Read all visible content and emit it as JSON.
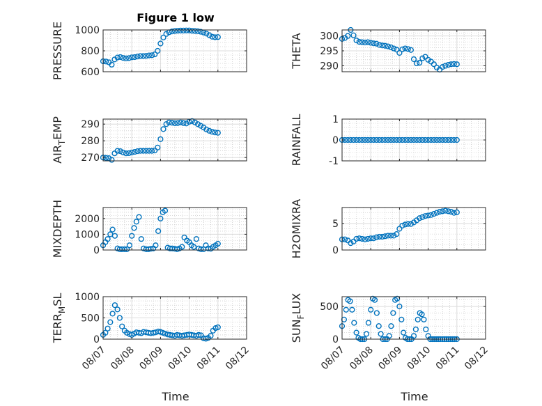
{
  "figure": {
    "title": "Figure 1 low",
    "xlabel": "Time"
  },
  "colors": {
    "marker": "#0072bd",
    "axis": "#262626",
    "grid": "#dcdcdc",
    "minor_grid": "#bdbdbd"
  },
  "chart_data": [
    {
      "type": "scatter",
      "ylabel": "PRESSURE",
      "ylabel_main": "PRESSURE",
      "ylabel_sub": "",
      "ylabel_tail": "",
      "ylim": [
        600,
        1000
      ],
      "yticks": [
        600,
        800,
        1000
      ],
      "yticklabels": [
        "600",
        "800",
        "1000"
      ],
      "x": [
        0.0,
        0.1,
        0.2,
        0.3,
        0.4,
        0.5,
        0.6,
        0.7,
        0.8,
        0.9,
        1.0,
        1.1,
        1.2,
        1.3,
        1.4,
        1.5,
        1.6,
        1.7,
        1.8,
        1.9,
        2.0,
        2.1,
        2.2,
        2.3,
        2.4,
        2.5,
        2.6,
        2.7,
        2.8,
        2.9,
        3.0,
        3.1,
        3.2,
        3.3,
        3.4,
        3.5,
        3.6,
        3.7,
        3.8,
        3.9,
        4.0
      ],
      "y": [
        700,
        698,
        690,
        668,
        718,
        736,
        740,
        732,
        728,
        730,
        738,
        740,
        746,
        750,
        750,
        752,
        756,
        758,
        766,
        800,
        870,
        928,
        962,
        978,
        986,
        990,
        993,
        994,
        994,
        995,
        995,
        992,
        990,
        988,
        983,
        975,
        965,
        950,
        935,
        930,
        932
      ]
    },
    {
      "type": "scatter",
      "ylabel": "THETA",
      "ylabel_main": "THETA",
      "ylabel_sub": "",
      "ylabel_tail": "",
      "ylim": [
        288,
        302
      ],
      "yticks": [
        290,
        295,
        300
      ],
      "yticklabels": [
        "290",
        "295",
        "300"
      ],
      "x": [
        0.0,
        0.1,
        0.2,
        0.3,
        0.4,
        0.5,
        0.6,
        0.7,
        0.8,
        0.9,
        1.0,
        1.1,
        1.2,
        1.3,
        1.4,
        1.5,
        1.6,
        1.7,
        1.8,
        1.9,
        2.0,
        2.1,
        2.2,
        2.3,
        2.4,
        2.5,
        2.6,
        2.7,
        2.8,
        2.9,
        3.0,
        3.1,
        3.2,
        3.3,
        3.4,
        3.5,
        3.6,
        3.7,
        3.8,
        3.9,
        4.0
      ],
      "y": [
        299.0,
        299.3,
        300.0,
        302.0,
        300.2,
        298.5,
        298.0,
        297.9,
        297.8,
        297.9,
        297.7,
        297.5,
        297.4,
        297.0,
        296.8,
        296.7,
        296.5,
        296.2,
        295.8,
        295.4,
        294.3,
        295.5,
        295.8,
        295.6,
        295.3,
        292.2,
        290.8,
        291.0,
        292.5,
        293.0,
        292.0,
        291.4,
        290.5,
        289.4,
        288.7,
        289.6,
        290.0,
        290.3,
        290.5,
        290.6,
        290.5
      ]
    },
    {
      "type": "scatter",
      "ylabel": "AIR_TEMP",
      "ylabel_main": "AIR",
      "ylabel_sub": "T",
      "ylabel_tail": "EMP",
      "ylim": [
        268,
        293
      ],
      "yticks": [
        270,
        280,
        290
      ],
      "yticklabels": [
        "270",
        "280",
        "290"
      ],
      "x": [
        0.0,
        0.1,
        0.2,
        0.3,
        0.4,
        0.5,
        0.6,
        0.7,
        0.8,
        0.9,
        1.0,
        1.1,
        1.2,
        1.3,
        1.4,
        1.5,
        1.6,
        1.7,
        1.8,
        1.9,
        2.0,
        2.1,
        2.2,
        2.3,
        2.4,
        2.5,
        2.6,
        2.7,
        2.8,
        2.9,
        3.0,
        3.1,
        3.2,
        3.3,
        3.4,
        3.5,
        3.6,
        3.7,
        3.8,
        3.9,
        4.0
      ],
      "y": [
        270.0,
        269.8,
        269.6,
        268.6,
        272.5,
        274.0,
        273.8,
        273.0,
        272.5,
        272.6,
        273.0,
        273.4,
        273.8,
        274.0,
        274.0,
        274.0,
        274.0,
        274.0,
        274.2,
        276.0,
        281.0,
        287.0,
        290.0,
        291.0,
        290.8,
        290.5,
        290.6,
        291.0,
        290.6,
        290.4,
        291.4,
        291.8,
        291.0,
        290.0,
        289.0,
        288.0,
        286.8,
        286.0,
        285.4,
        285.0,
        284.8
      ]
    },
    {
      "type": "scatter",
      "ylabel": "RAINFALL",
      "ylabel_main": "RAINFALL",
      "ylabel_sub": "",
      "ylabel_tail": "",
      "ylim": [
        -1,
        1
      ],
      "yticks": [
        -1,
        0,
        1
      ],
      "yticklabels": [
        "-1",
        "0",
        "1"
      ],
      "x": [
        0.0,
        0.1,
        0.2,
        0.3,
        0.4,
        0.5,
        0.6,
        0.7,
        0.8,
        0.9,
        1.0,
        1.1,
        1.2,
        1.3,
        1.4,
        1.5,
        1.6,
        1.7,
        1.8,
        1.9,
        2.0,
        2.1,
        2.2,
        2.3,
        2.4,
        2.5,
        2.6,
        2.7,
        2.8,
        2.9,
        3.0,
        3.1,
        3.2,
        3.3,
        3.4,
        3.5,
        3.6,
        3.7,
        3.8,
        3.9,
        4.0
      ],
      "y": [
        0,
        0,
        0,
        0,
        0,
        0,
        0,
        0,
        0,
        0,
        0,
        0,
        0,
        0,
        0,
        0,
        0,
        0,
        0,
        0,
        0,
        0,
        0,
        0,
        0,
        0,
        0,
        0,
        0,
        0,
        0,
        0,
        0,
        0,
        0,
        0,
        0,
        0,
        0,
        0,
        0
      ]
    },
    {
      "type": "scatter",
      "ylabel": "MIXDEPTH",
      "ylabel_main": "MIXDEPTH",
      "ylabel_sub": "",
      "ylabel_tail": "",
      "ylim": [
        0,
        2700
      ],
      "yticks": [
        0,
        1000,
        2000
      ],
      "yticklabels": [
        "0",
        "1000",
        "2000"
      ],
      "x": [
        0.0,
        0.08,
        0.16,
        0.25,
        0.33,
        0.41,
        0.5,
        0.58,
        0.66,
        0.75,
        0.83,
        0.92,
        1.0,
        1.08,
        1.16,
        1.25,
        1.33,
        1.41,
        1.5,
        1.58,
        1.66,
        1.75,
        1.83,
        1.92,
        2.0,
        2.08,
        2.16,
        2.25,
        2.33,
        2.41,
        2.5,
        2.58,
        2.66,
        2.75,
        2.83,
        2.92,
        3.0,
        3.08,
        3.16,
        3.25,
        3.33,
        3.41,
        3.5,
        3.58,
        3.66,
        3.75,
        3.83,
        3.92,
        4.0
      ],
      "y": [
        300,
        500,
        700,
        1000,
        1300,
        900,
        100,
        50,
        50,
        50,
        50,
        300,
        900,
        1400,
        1800,
        2100,
        700,
        100,
        50,
        50,
        80,
        100,
        300,
        1200,
        2000,
        2400,
        2500,
        150,
        100,
        100,
        80,
        50,
        100,
        200,
        800,
        600,
        500,
        300,
        200,
        700,
        100,
        50,
        50,
        300,
        100,
        80,
        200,
        300,
        400
      ]
    },
    {
      "type": "scatter",
      "ylabel": "H2OMIXRA",
      "ylabel_main": "H2OMIXRA",
      "ylabel_sub": "",
      "ylabel_tail": "",
      "ylim": [
        0,
        8
      ],
      "yticks": [
        0,
        5
      ],
      "yticklabels": [
        "0",
        "5"
      ],
      "x": [
        0.0,
        0.1,
        0.2,
        0.3,
        0.4,
        0.5,
        0.6,
        0.7,
        0.8,
        0.9,
        1.0,
        1.1,
        1.2,
        1.3,
        1.4,
        1.5,
        1.6,
        1.7,
        1.8,
        1.9,
        2.0,
        2.1,
        2.2,
        2.3,
        2.4,
        2.5,
        2.6,
        2.7,
        2.8,
        2.9,
        3.0,
        3.1,
        3.2,
        3.3,
        3.4,
        3.5,
        3.6,
        3.7,
        3.8,
        3.9,
        4.0
      ],
      "y": [
        2.0,
        2.0,
        1.8,
        1.3,
        1.6,
        2.1,
        2.2,
        2.1,
        2.0,
        2.1,
        2.2,
        2.2,
        2.4,
        2.5,
        2.5,
        2.6,
        2.7,
        2.7,
        2.7,
        3.0,
        4.0,
        4.6,
        4.8,
        4.9,
        4.9,
        5.2,
        5.6,
        6.0,
        6.2,
        6.4,
        6.5,
        6.6,
        6.8,
        7.0,
        7.2,
        7.3,
        7.4,
        7.3,
        7.2,
        7.0,
        7.1
      ]
    },
    {
      "type": "scatter",
      "ylabel": "TERR_MSL",
      "ylabel_main": "TERR",
      "ylabel_sub": "M",
      "ylabel_tail": "SL",
      "ylim": [
        0,
        1000
      ],
      "yticks": [
        0,
        500,
        1000
      ],
      "yticklabels": [
        "0",
        "500",
        "1000"
      ],
      "x": [
        0.0,
        0.08,
        0.16,
        0.25,
        0.33,
        0.41,
        0.5,
        0.58,
        0.66,
        0.75,
        0.83,
        0.92,
        1.0,
        1.08,
        1.16,
        1.25,
        1.33,
        1.41,
        1.5,
        1.58,
        1.66,
        1.75,
        1.83,
        1.92,
        2.0,
        2.08,
        2.16,
        2.25,
        2.33,
        2.41,
        2.5,
        2.58,
        2.66,
        2.75,
        2.83,
        2.92,
        3.0,
        3.08,
        3.16,
        3.25,
        3.33,
        3.41,
        3.5,
        3.58,
        3.66,
        3.75,
        3.83,
        3.92,
        4.0
      ],
      "y": [
        100,
        150,
        250,
        400,
        600,
        800,
        700,
        500,
        300,
        200,
        150,
        120,
        100,
        130,
        160,
        150,
        140,
        170,
        160,
        150,
        140,
        150,
        160,
        180,
        170,
        150,
        130,
        110,
        100,
        90,
        80,
        100,
        90,
        80,
        90,
        100,
        110,
        100,
        90,
        80,
        100,
        90,
        20,
        10,
        30,
        80,
        200,
        260,
        280
      ]
    },
    {
      "type": "scatter",
      "ylabel": "SUN_FLUX",
      "ylabel_main": "SUN",
      "ylabel_sub": "F",
      "ylabel_tail": "LUX",
      "ylim": [
        0,
        650
      ],
      "yticks": [
        0,
        500
      ],
      "yticklabels": [
        "0",
        "500"
      ],
      "x": [
        0.0,
        0.07,
        0.14,
        0.21,
        0.28,
        0.35,
        0.42,
        0.5,
        0.57,
        0.64,
        0.71,
        0.78,
        0.85,
        0.92,
        1.0,
        1.07,
        1.14,
        1.21,
        1.28,
        1.35,
        1.42,
        1.5,
        1.57,
        1.64,
        1.71,
        1.78,
        1.85,
        1.92,
        2.0,
        2.07,
        2.14,
        2.21,
        2.28,
        2.35,
        2.42,
        2.5,
        2.57,
        2.64,
        2.71,
        2.78,
        2.85,
        2.92,
        3.0,
        3.07,
        3.14,
        3.21,
        3.28,
        3.35,
        3.42,
        3.5,
        3.57,
        3.64,
        3.71,
        3.78,
        3.85,
        3.92,
        4.0
      ],
      "y": [
        200,
        300,
        450,
        600,
        580,
        450,
        250,
        100,
        20,
        0,
        0,
        0,
        80,
        250,
        450,
        620,
        600,
        400,
        200,
        80,
        0,
        0,
        0,
        50,
        200,
        400,
        600,
        620,
        500,
        300,
        100,
        20,
        0,
        0,
        0,
        50,
        150,
        300,
        400,
        380,
        300,
        150,
        50,
        0,
        0,
        0,
        0,
        0,
        0,
        0,
        0,
        0,
        0,
        0,
        0,
        0,
        0
      ]
    }
  ],
  "x_axis": {
    "ticks": [
      0,
      1,
      2,
      3,
      4,
      5
    ],
    "ticklabels": [
      "08/07",
      "08/08",
      "08/09",
      "08/10",
      "08/11",
      "08/12"
    ],
    "xlim": [
      0,
      5
    ]
  }
}
